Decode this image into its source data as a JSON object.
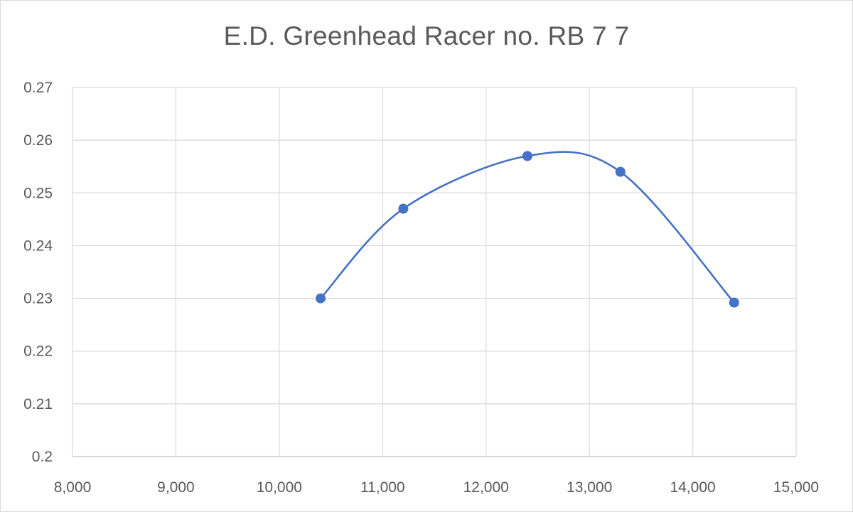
{
  "chart_data": {
    "type": "scatter",
    "title": "E.D. Greenhead Racer no. RB 7 7",
    "xlabel": "",
    "ylabel": "",
    "xlim": [
      8000,
      15000
    ],
    "ylim": [
      0.2,
      0.27
    ],
    "x_ticks": [
      8000,
      9000,
      10000,
      11000,
      12000,
      13000,
      14000,
      15000
    ],
    "x_tick_labels": [
      "8,000",
      "9,000",
      "10,000",
      "11,000",
      "12,000",
      "13,000",
      "14,000",
      "15,000"
    ],
    "y_ticks": [
      0.2,
      0.21,
      0.22,
      0.23,
      0.24,
      0.25,
      0.26,
      0.27
    ],
    "y_tick_labels": [
      "0.2",
      "0.21",
      "0.22",
      "0.23",
      "0.24",
      "0.25",
      "0.26",
      "0.27"
    ],
    "grid": true,
    "smooth_line": true,
    "series": [
      {
        "x": [
          10400,
          11200,
          12400,
          13300,
          14400
        ],
        "y": [
          0.23,
          0.247,
          0.257,
          0.254,
          0.2292
        ],
        "color": "#4472c4"
      }
    ]
  }
}
